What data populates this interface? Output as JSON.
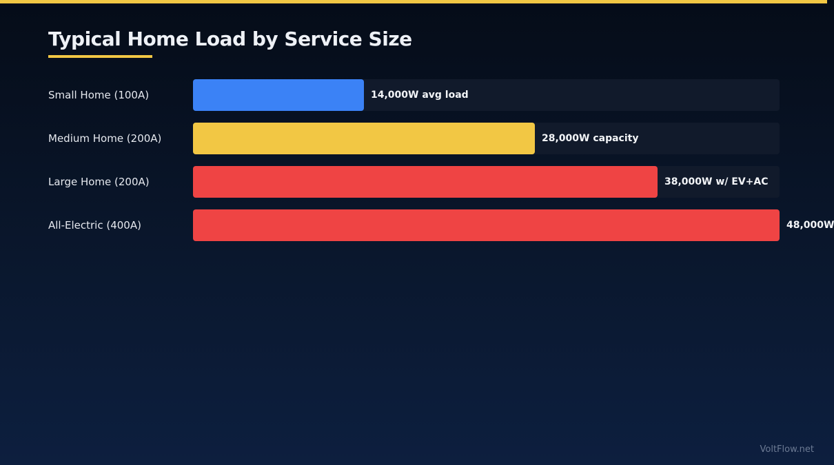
{
  "title": "Typical Home Load by Service Size",
  "watermark": "VoltFlow.net",
  "colors": {
    "accent": "#f2c744",
    "track": "#111a2b"
  },
  "chart_data": {
    "type": "bar",
    "orientation": "horizontal",
    "title": "Typical Home Load by Service Size",
    "categories": [
      "Small Home (100A)",
      "Medium Home (200A)",
      "Large Home (200A)",
      "All-Electric (400A)"
    ],
    "values": [
      14000,
      28000,
      38000,
      48000
    ],
    "value_labels": [
      "14,000W avg load",
      "28,000W capacity",
      "38,000W w/ EV+AC",
      "48,000W"
    ],
    "bar_colors": [
      "#3b82f6",
      "#f2c744",
      "#ef4444",
      "#ef4444"
    ],
    "xlim": [
      0,
      48000
    ],
    "grid": false,
    "legend": "none"
  }
}
